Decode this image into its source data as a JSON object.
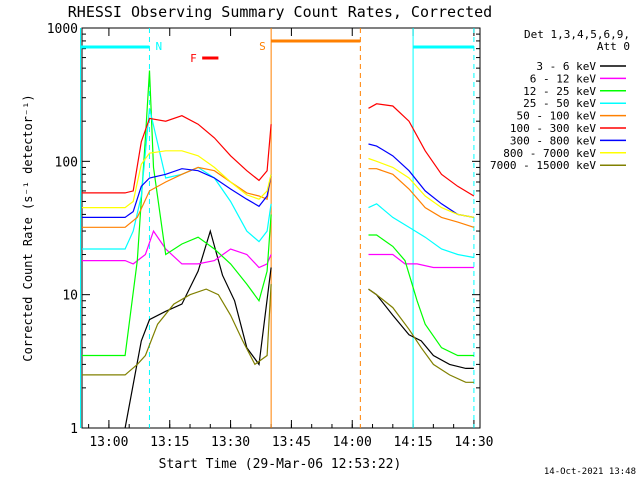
{
  "chart_data": {
    "type": "line",
    "title": "RHESSI Observing Summary Count Rates, Corrected",
    "xlabel": "Start Time (29-Mar-06 12:53:22)",
    "ylabel": "Corrected Count Rate (s⁻¹ detector⁻¹)",
    "ylog": true,
    "ylim": [
      1,
      1000
    ],
    "xlim_minutes": [
      12.88,
      13.0,
      13.0,
      30.5
    ],
    "xlim": [
      "12:53",
      "14:31"
    ],
    "x_ticks": [
      "13:00",
      "13:15",
      "13:30",
      "13:45",
      "14:00",
      "14:15",
      "14:30"
    ],
    "y_ticks": [
      "1",
      "10",
      "100",
      "1000"
    ],
    "legend_header": [
      "Det 1,3,4,5,6,9,",
      "Att 0"
    ],
    "legend_position": "right",
    "timestamp": "14-Oct-2021 13:48",
    "flags": [
      {
        "label": "N",
        "color": "#00ffff",
        "meaning": "night"
      },
      {
        "label": "F",
        "color": "#ff0000",
        "meaning": "flare"
      },
      {
        "label": "S",
        "color": "#ff8000",
        "meaning": "SAA"
      }
    ],
    "flag_intervals": {
      "N": [
        [
          "12:53",
          "13:10"
        ],
        [
          "14:15",
          "14:30"
        ]
      ],
      "F": [
        [
          "13:23",
          "13:27"
        ]
      ],
      "S": [
        [
          "13:40",
          "14:02"
        ]
      ]
    },
    "series": [
      {
        "name": "3 - 6 keV",
        "color": "#000000",
        "x": [
          "13:04",
          "13:08",
          "13:10",
          "13:14",
          "13:18",
          "13:22",
          "13:25",
          "13:28",
          "13:31",
          "13:34",
          "13:37",
          "13:40",
          "14:04",
          "14:06",
          "14:10",
          "14:14",
          "14:17",
          "14:20",
          "14:24",
          "14:28",
          "14:30"
        ],
        "values": [
          1.0,
          4.5,
          6.5,
          7.5,
          8.5,
          15,
          30,
          14,
          9,
          4.0,
          3.0,
          16,
          11,
          10,
          7.0,
          5.0,
          4.5,
          3.5,
          3.0,
          2.8,
          2.8
        ]
      },
      {
        "name": "6 - 12 keV",
        "color": "#ff00ff",
        "x": [
          "12:53",
          "13:04",
          "13:06",
          "13:09",
          "13:11",
          "13:14",
          "13:18",
          "13:22",
          "13:26",
          "13:30",
          "13:34",
          "13:37",
          "13:39",
          "13:40",
          "14:04",
          "14:06",
          "14:10",
          "14:13",
          "14:16",
          "14:20",
          "14:24",
          "14:28",
          "14:30"
        ],
        "values": [
          18,
          18,
          17,
          20,
          30,
          22,
          17,
          17,
          18,
          22,
          20,
          16,
          17,
          20,
          20,
          20,
          20,
          17,
          17,
          16,
          16,
          16,
          16
        ]
      },
      {
        "name": "12 - 25 keV",
        "color": "#00ff00",
        "x": [
          "12:53",
          "13:04",
          "13:07",
          "13:09",
          "13:10",
          "13:11",
          "13:14",
          "13:18",
          "13:22",
          "13:26",
          "13:30",
          "13:34",
          "13:37",
          "13:39",
          "13:40",
          "14:04",
          "14:06",
          "14:10",
          "14:13",
          "14:16",
          "14:18",
          "14:22",
          "14:26",
          "14:30"
        ],
        "values": [
          3.5,
          3.5,
          18,
          150,
          480,
          90,
          20,
          24,
          27,
          22,
          17,
          12,
          9,
          15,
          40,
          28,
          28,
          23,
          18,
          9,
          6,
          4,
          3.5,
          3.5
        ]
      },
      {
        "name": "25 - 50 keV",
        "color": "#00ffff",
        "x": [
          "12:53",
          "13:04",
          "13:06",
          "13:08",
          "13:10",
          "13:14",
          "13:18",
          "13:22",
          "13:26",
          "13:30",
          "13:34",
          "13:37",
          "13:39",
          "13:40",
          "14:04",
          "14:06",
          "14:10",
          "14:14",
          "14:18",
          "14:22",
          "14:26",
          "14:30"
        ],
        "values": [
          22,
          22,
          30,
          55,
          250,
          75,
          80,
          90,
          75,
          50,
          30,
          25,
          30,
          48,
          45,
          48,
          38,
          32,
          27,
          22,
          20,
          19
        ]
      },
      {
        "name": "50 - 100 keV",
        "color": "#ff8000",
        "x": [
          "12:53",
          "13:04",
          "13:07",
          "13:10",
          "13:14",
          "13:18",
          "13:22",
          "13:26",
          "13:30",
          "13:34",
          "13:37",
          "13:39",
          "13:40",
          "14:04",
          "14:06",
          "14:10",
          "14:14",
          "14:18",
          "14:22",
          "14:26",
          "14:30"
        ],
        "values": [
          32,
          32,
          38,
          60,
          70,
          80,
          90,
          85,
          70,
          58,
          55,
          52,
          78,
          88,
          88,
          80,
          62,
          45,
          38,
          35,
          32
        ]
      },
      {
        "name": "100 - 300 keV",
        "color": "#ff0000",
        "x": [
          "12:53",
          "13:04",
          "13:06",
          "13:08",
          "13:10",
          "13:14",
          "13:18",
          "13:22",
          "13:26",
          "13:30",
          "13:34",
          "13:37",
          "13:39",
          "13:40",
          "14:04",
          "14:06",
          "14:10",
          "14:14",
          "14:18",
          "14:22",
          "14:26",
          "14:30"
        ],
        "values": [
          58,
          58,
          60,
          140,
          210,
          200,
          220,
          190,
          150,
          110,
          85,
          72,
          85,
          190,
          250,
          270,
          260,
          200,
          120,
          80,
          65,
          55
        ]
      },
      {
        "name": "300 - 800 keV",
        "color": "#0000ff",
        "x": [
          "12:53",
          "13:04",
          "13:06",
          "13:08",
          "13:10",
          "13:14",
          "13:18",
          "13:22",
          "13:26",
          "13:30",
          "13:34",
          "13:37",
          "13:39",
          "13:40",
          "14:04",
          "14:06",
          "14:10",
          "14:14",
          "14:18",
          "14:22",
          "14:26",
          "14:30"
        ],
        "values": [
          38,
          38,
          42,
          65,
          75,
          80,
          88,
          85,
          75,
          62,
          52,
          46,
          55,
          80,
          135,
          130,
          110,
          85,
          60,
          48,
          40,
          38
        ]
      },
      {
        "name": "800 - 7000 keV",
        "color": "#ffff00",
        "x": [
          "12:53",
          "13:04",
          "13:06",
          "13:08",
          "13:10",
          "13:14",
          "13:18",
          "13:22",
          "13:26",
          "13:30",
          "13:34",
          "13:37",
          "13:39",
          "13:40",
          "14:04",
          "14:06",
          "14:10",
          "14:14",
          "14:18",
          "14:22",
          "14:26",
          "14:30"
        ],
        "values": [
          45,
          45,
          50,
          95,
          115,
          120,
          120,
          110,
          90,
          70,
          56,
          52,
          60,
          80,
          105,
          100,
          90,
          75,
          55,
          45,
          40,
          38
        ]
      },
      {
        "name": "7000 - 15000 keV",
        "color": "#808000",
        "x": [
          "12:53",
          "13:04",
          "13:07",
          "13:09",
          "13:12",
          "13:16",
          "13:20",
          "13:24",
          "13:27",
          "13:30",
          "13:33",
          "13:36",
          "13:39",
          "13:40",
          "14:04",
          "14:06",
          "14:10",
          "14:14",
          "14:17",
          "14:20",
          "14:24",
          "14:28",
          "14:30"
        ],
        "values": [
          2.5,
          2.5,
          3.0,
          3.5,
          6.0,
          8.5,
          10,
          11,
          10,
          7,
          4.5,
          3.0,
          3.5,
          12,
          11,
          10,
          8,
          5.5,
          4.0,
          3.0,
          2.5,
          2.2,
          2.2
        ]
      }
    ]
  }
}
